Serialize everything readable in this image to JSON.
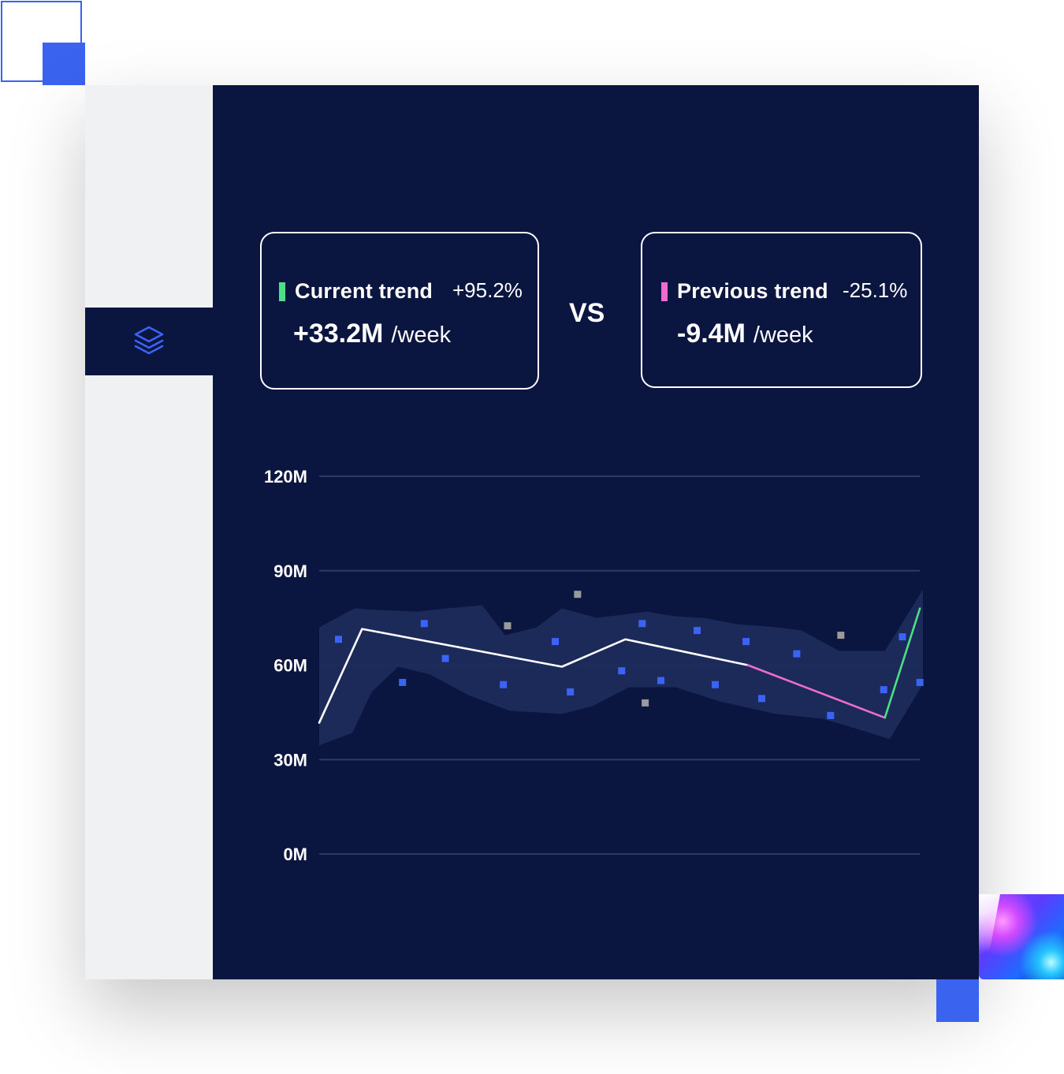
{
  "current": {
    "label": "Current trend",
    "pct": "+95.2%",
    "value": "+33.2M",
    "unit": "/week",
    "color": "#4cdf86"
  },
  "previous": {
    "label": "Previous trend",
    "pct": "-25.1%",
    "value": "-9.4M",
    "unit": "/week",
    "color": "#ef6bd0"
  },
  "vs_label": "VS",
  "colors": {
    "background": "#0b1640",
    "sidebar": "#f0f1f3",
    "accent": "#3a63f0",
    "band": "#1e2b5b",
    "gridline": "#2e3a66",
    "trend_line": "#ffffff",
    "point": "#3b63f5",
    "outlier_point": "#9a9a9a"
  },
  "chart_data": {
    "type": "line",
    "ylim": [
      0,
      120
    ],
    "y_ticks": [
      "0M",
      "30M",
      "60M",
      "90M",
      "120M"
    ],
    "y_tick_values": [
      0,
      30,
      60,
      90,
      120
    ],
    "xlim": [
      0,
      100
    ],
    "grid": true,
    "series": [
      {
        "type": "line",
        "color": "#ffffff",
        "points": [
          [
            0,
            41.7
          ],
          [
            7.1,
            71.5
          ],
          [
            40.2,
            59.5
          ],
          [
            50.7,
            68.2
          ],
          [
            71.0,
            60.0
          ]
        ]
      },
      {
        "type": "line",
        "color": "#ef6bd0",
        "points": [
          [
            71.0,
            60.0
          ],
          [
            93.7,
            43.3
          ]
        ]
      },
      {
        "type": "line",
        "color": "#4cdf86",
        "points": [
          [
            93.7,
            43.3
          ],
          [
            99.5,
            78.0
          ]
        ]
      },
      {
        "type": "band",
        "upper": [
          [
            0,
            72
          ],
          [
            5.8,
            78
          ],
          [
            10.0,
            77.5
          ],
          [
            16.4,
            77
          ],
          [
            21.0,
            78
          ],
          [
            27.0,
            79
          ],
          [
            30.8,
            69.5
          ],
          [
            36.0,
            72
          ],
          [
            40.2,
            78
          ],
          [
            46.0,
            75
          ],
          [
            54.2,
            77
          ],
          [
            59.0,
            75.5
          ],
          [
            63.7,
            75
          ],
          [
            69.3,
            73
          ],
          [
            76.1,
            72
          ],
          [
            79.9,
            71
          ],
          [
            82.8,
            68
          ],
          [
            86.1,
            64.5
          ],
          [
            93.7,
            64.5
          ],
          [
            100,
            84
          ]
        ],
        "lower": [
          [
            0,
            34.5
          ],
          [
            5.5,
            38.5
          ],
          [
            8.7,
            51.5
          ],
          [
            13.1,
            59.5
          ],
          [
            18.4,
            57
          ],
          [
            24.7,
            50.5
          ],
          [
            31.5,
            45.5
          ],
          [
            36.0,
            45
          ],
          [
            40.2,
            44.5
          ],
          [
            45.3,
            47
          ],
          [
            51.3,
            53
          ],
          [
            59.0,
            53
          ],
          [
            66.3,
            48.5
          ],
          [
            75.6,
            44.5
          ],
          [
            83.3,
            43
          ],
          [
            88.7,
            40
          ],
          [
            94.5,
            36.5
          ],
          [
            100,
            54
          ]
        ]
      },
      {
        "type": "scatter",
        "color": "#3b63f5",
        "points": [
          [
            3.2,
            68.2
          ],
          [
            13.8,
            54.5
          ],
          [
            17.4,
            73.2
          ],
          [
            20.9,
            62.1
          ],
          [
            30.5,
            53.8
          ],
          [
            39.1,
            67.5
          ],
          [
            41.6,
            51.5
          ],
          [
            50.1,
            58.2
          ],
          [
            53.5,
            73.2
          ],
          [
            56.6,
            55.1
          ],
          [
            62.6,
            71.0
          ],
          [
            65.6,
            53.8
          ],
          [
            70.7,
            67.5
          ],
          [
            73.3,
            49.4
          ],
          [
            79.1,
            63.6
          ],
          [
            84.7,
            44.0
          ],
          [
            93.5,
            52.2
          ],
          [
            96.6,
            69.0
          ],
          [
            99.5,
            54.5
          ]
        ]
      },
      {
        "type": "scatter",
        "color": "#9a9a9a",
        "points": [
          [
            31.2,
            72.5
          ],
          [
            42.8,
            82.5
          ],
          [
            54.0,
            48.0
          ],
          [
            86.4,
            69.5
          ]
        ]
      }
    ]
  }
}
